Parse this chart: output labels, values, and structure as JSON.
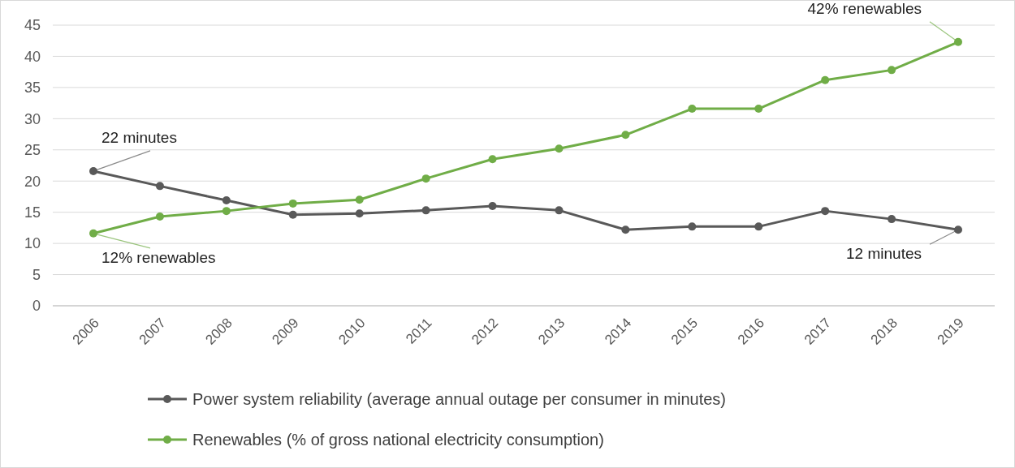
{
  "chart_data": {
    "type": "line",
    "categories": [
      "2006",
      "2007",
      "2008",
      "2009",
      "2010",
      "2011",
      "2012",
      "2013",
      "2014",
      "2015",
      "2016",
      "2017",
      "2018",
      "2019"
    ],
    "series": [
      {
        "name": "Power system reliability (average annual outage per consumer in minutes)",
        "color": "#595959",
        "values": [
          21.6,
          19.2,
          16.9,
          14.6,
          14.8,
          15.3,
          16.0,
          15.3,
          12.2,
          12.7,
          12.7,
          15.2,
          13.9,
          12.2
        ]
      },
      {
        "name": "Renewables (% of gross national electricity consumption)",
        "color": "#70ad47",
        "values": [
          11.6,
          14.3,
          15.2,
          16.4,
          17.0,
          20.4,
          23.5,
          25.2,
          27.4,
          31.6,
          31.6,
          36.2,
          37.8,
          42.3
        ]
      }
    ],
    "ylim": [
      0,
      45
    ],
    "yticks": [
      0,
      5,
      10,
      15,
      20,
      25,
      30,
      35,
      40,
      45
    ],
    "grid": "y",
    "legend": "bottom",
    "marker": "circle",
    "line_style": "solid",
    "annotations": [
      {
        "text": "22 minutes",
        "x": "2006",
        "y": 21.6
      },
      {
        "text": "12% renewables",
        "x": "2006",
        "y": 11.6
      },
      {
        "text": "42% renewables",
        "x": "2019",
        "y": 42.3
      },
      {
        "text": "12 minutes",
        "x": "2019",
        "y": 12.2
      }
    ]
  }
}
